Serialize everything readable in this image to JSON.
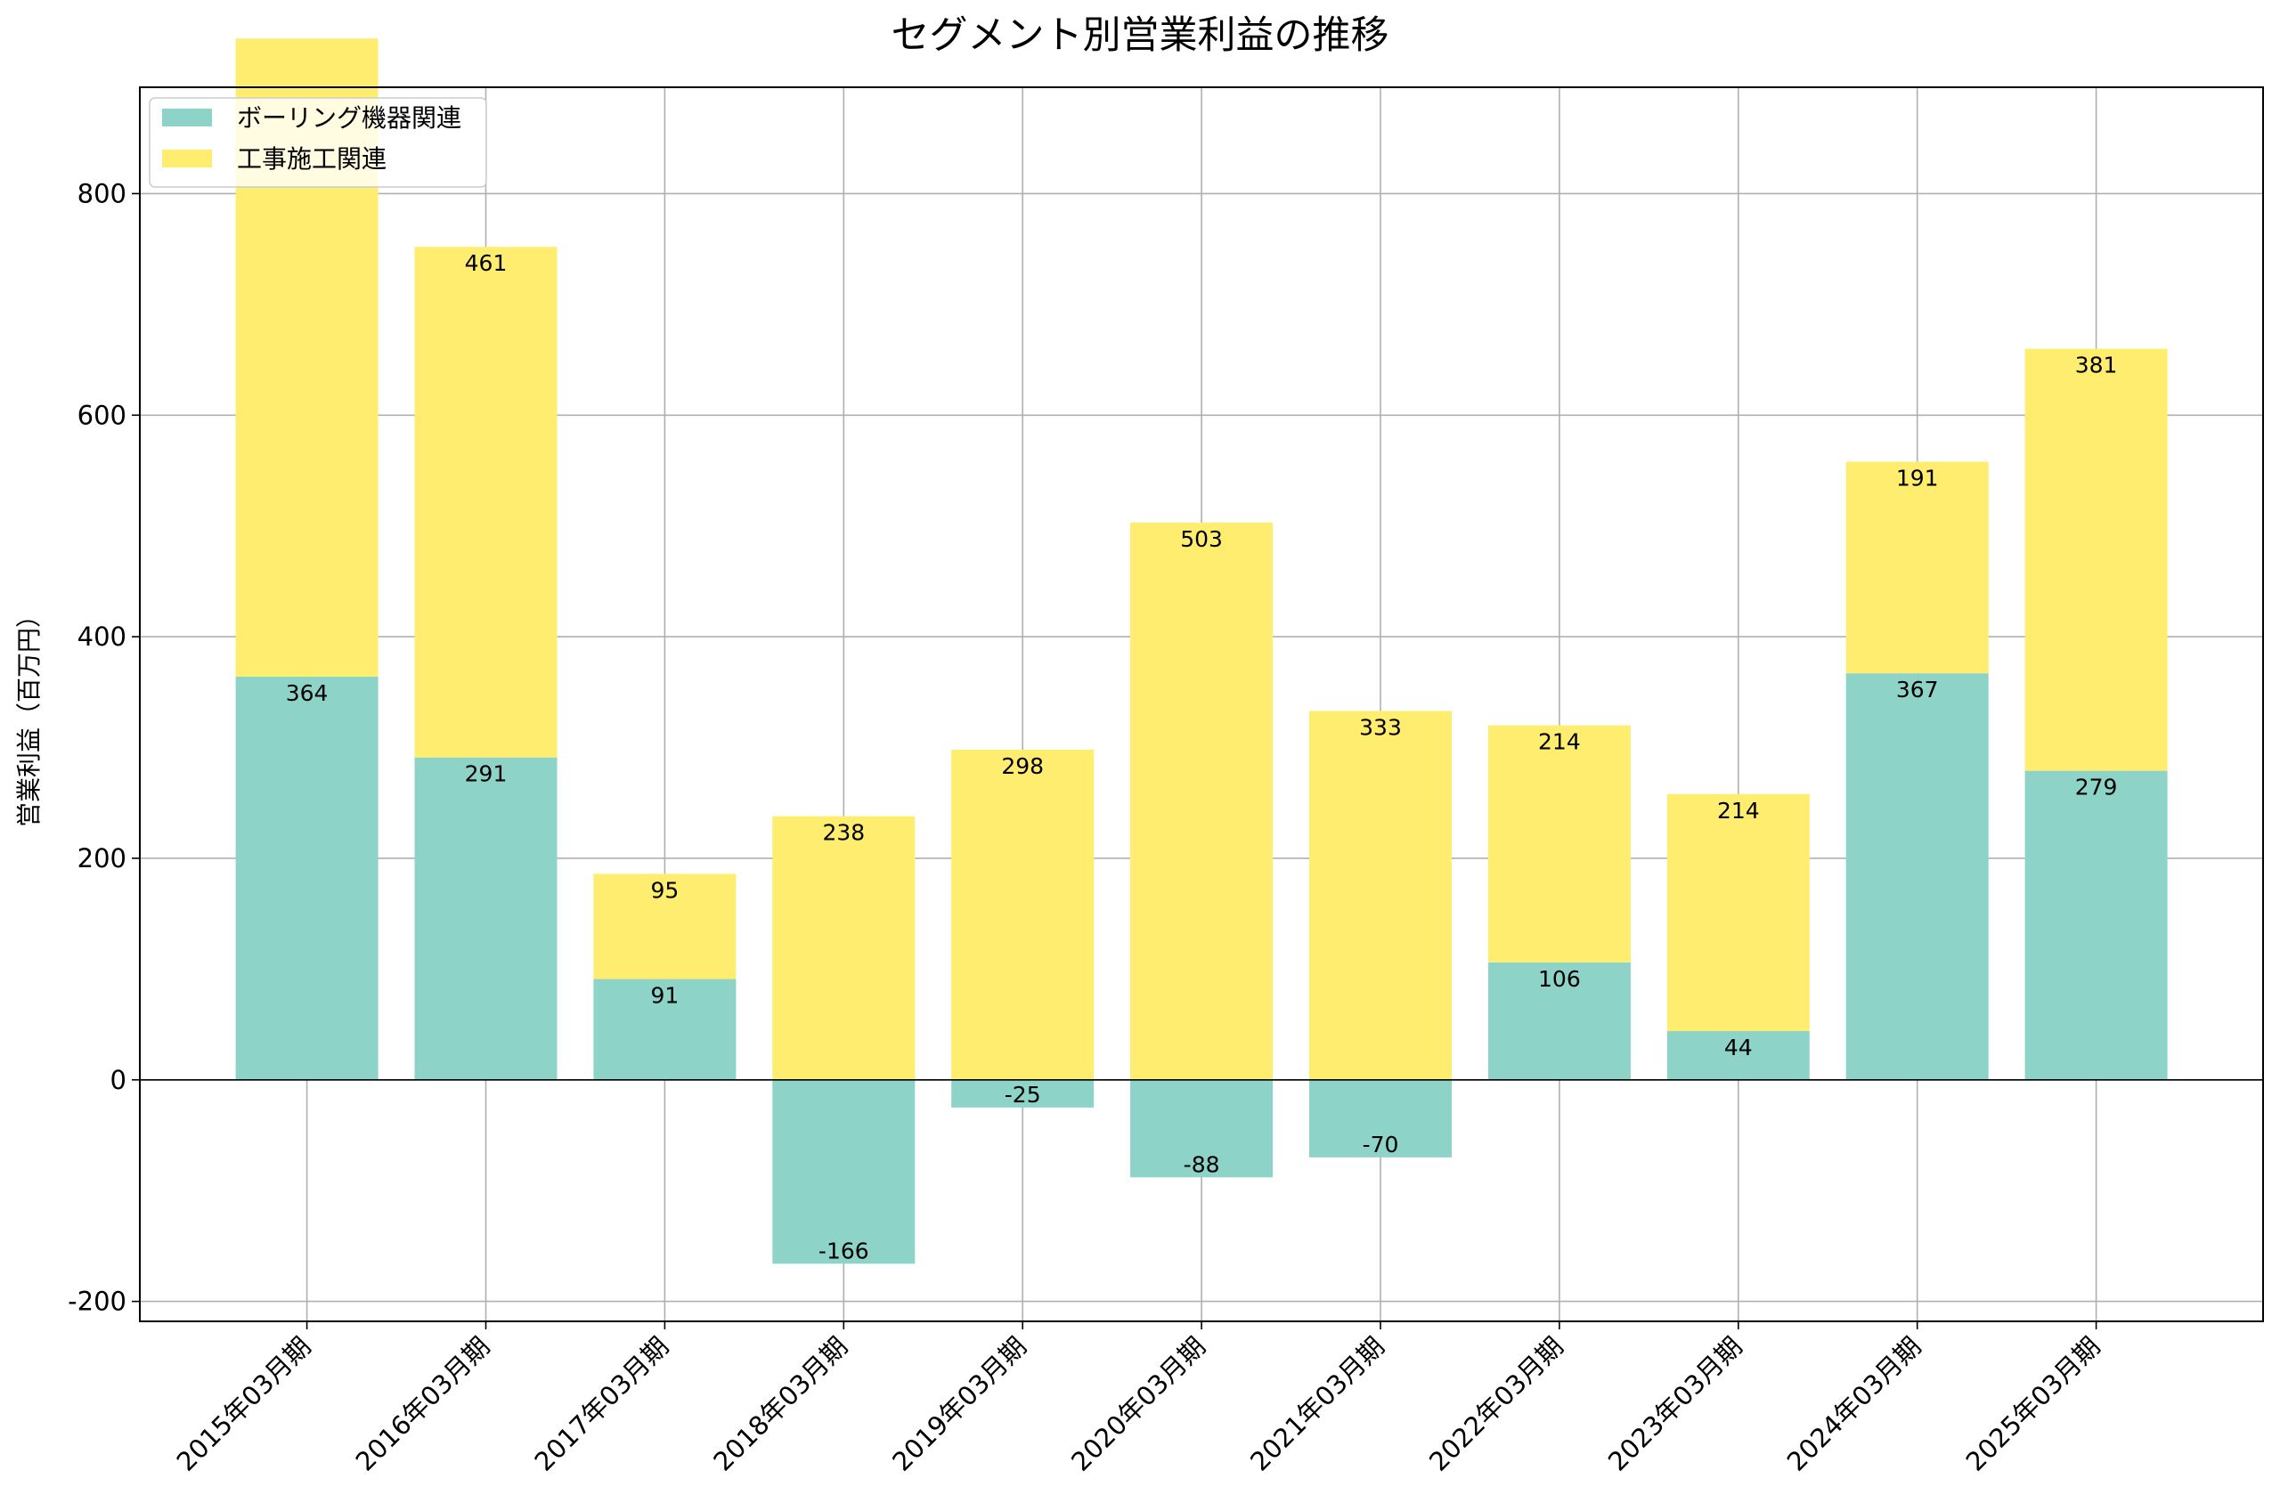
{
  "chart_data": {
    "type": "bar",
    "stacked": true,
    "title": "セグメント別営業利益の推移",
    "xlabel": "",
    "ylabel": "営業利益（百万円）",
    "ylim": [
      -218,
      896
    ],
    "yticks": [
      -200,
      0,
      200,
      400,
      600,
      800
    ],
    "grid": true,
    "legend_position": "top-left",
    "categories": [
      "2015年03月期",
      "2016年03月期",
      "2017年03月期",
      "2018年03月期",
      "2019年03月期",
      "2020年03月期",
      "2021年03月期",
      "2022年03月期",
      "2023年03月期",
      "2024年03月期",
      "2025年03月期"
    ],
    "series": [
      {
        "name": "ボーリング機器関連",
        "color": "#8dd3c7",
        "values": [
          364,
          291,
          91,
          -166,
          -25,
          -88,
          -70,
          106,
          44,
          367,
          279
        ]
      },
      {
        "name": "工事施工関連",
        "color": "#ffed6f",
        "values": [
          576,
          461,
          95,
          238,
          298,
          503,
          333,
          214,
          214,
          191,
          381
        ]
      }
    ],
    "data_labels": [
      [
        "364",
        "291",
        "91",
        "-166",
        "-25",
        "-88",
        "-70",
        "106",
        "44",
        "367",
        "279"
      ],
      [
        "",
        "461",
        "95",
        "238",
        "298",
        "503",
        "333",
        "214",
        "214",
        "191",
        "381"
      ]
    ]
  }
}
